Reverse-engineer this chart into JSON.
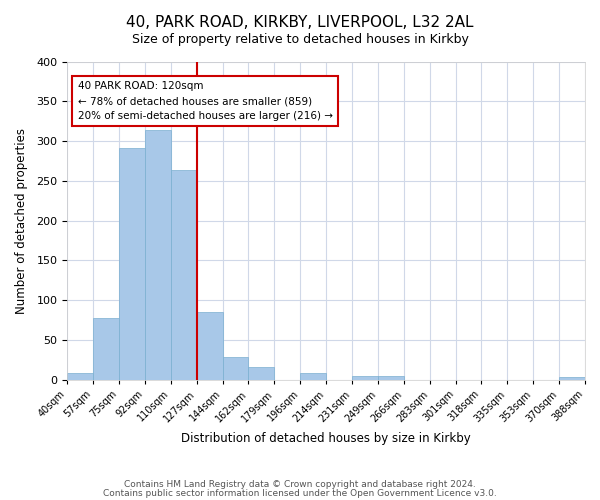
{
  "title": "40, PARK ROAD, KIRKBY, LIVERPOOL, L32 2AL",
  "subtitle": "Size of property relative to detached houses in Kirkby",
  "xlabel": "Distribution of detached houses by size in Kirkby",
  "ylabel": "Number of detached properties",
  "bar_color": "#a8c8e8",
  "bar_edge_color": "#7aafd0",
  "bins": [
    "40sqm",
    "57sqm",
    "75sqm",
    "92sqm",
    "110sqm",
    "127sqm",
    "144sqm",
    "162sqm",
    "179sqm",
    "196sqm",
    "214sqm",
    "231sqm",
    "249sqm",
    "266sqm",
    "283sqm",
    "301sqm",
    "318sqm",
    "335sqm",
    "353sqm",
    "370sqm",
    "388sqm"
  ],
  "values": [
    8,
    77,
    291,
    314,
    263,
    85,
    29,
    16,
    0,
    8,
    0,
    5,
    5,
    0,
    0,
    0,
    0,
    0,
    0,
    3
  ],
  "property_line_x": 5,
  "property_line_color": "#cc0000",
  "annotation_text": "40 PARK ROAD: 120sqm\n← 78% of detached houses are smaller (859)\n20% of semi-detached houses are larger (216) →",
  "annotation_box_color": "#ffffff",
  "annotation_box_edge_color": "#cc0000",
  "ylim": [
    0,
    400
  ],
  "yticks": [
    0,
    50,
    100,
    150,
    200,
    250,
    300,
    350,
    400
  ],
  "footer1": "Contains HM Land Registry data © Crown copyright and database right 2024.",
  "footer2": "Contains public sector information licensed under the Open Government Licence v3.0.",
  "background_color": "#ffffff",
  "grid_color": "#d0d8e8"
}
